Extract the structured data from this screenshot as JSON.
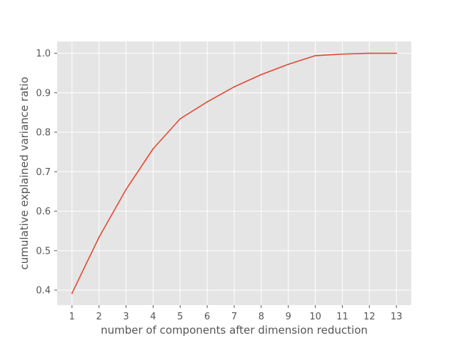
{
  "chart_data": {
    "type": "line",
    "title": "",
    "xlabel": "number of components after dimension reduction",
    "ylabel": "cumulative explained variance ratio",
    "x": [
      1,
      2,
      3,
      4,
      5,
      6,
      7,
      8,
      9,
      10,
      11,
      12,
      13
    ],
    "series": [
      {
        "values": [
          0.392,
          0.534,
          0.655,
          0.758,
          0.834,
          0.877,
          0.915,
          0.946,
          0.972,
          0.994,
          0.998,
          1.0,
          1.0
        ],
        "color": "#E24A33"
      }
    ],
    "xlim": [
      0.45,
      13.55
    ],
    "ylim": [
      0.362,
      1.03
    ],
    "xticks": [
      "1",
      "2",
      "3",
      "4",
      "5",
      "6",
      "7",
      "8",
      "9",
      "10",
      "11",
      "12",
      "13"
    ],
    "yticks": [
      "0.4",
      "0.5",
      "0.6",
      "0.7",
      "0.8",
      "0.9",
      "1.0"
    ],
    "grid": true,
    "style": {
      "plot_background": "#E5E5E5",
      "grid_color": "#FFFFFF",
      "tick_color": "#555555"
    }
  }
}
